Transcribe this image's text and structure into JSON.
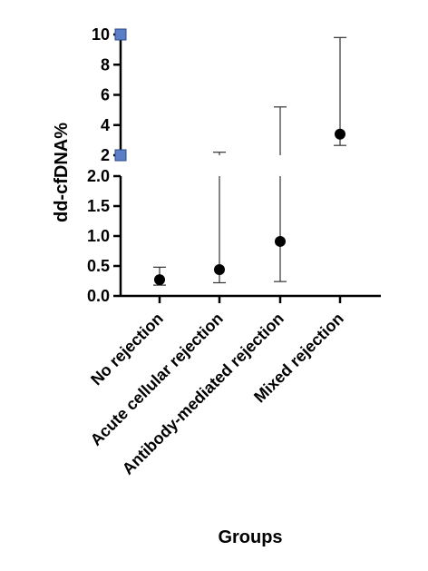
{
  "chart_data": {
    "type": "scatter",
    "xlabel": "Groups",
    "ylabel": "dd-cfDNA%",
    "axis_break": true,
    "ylim_lower": [
      0,
      2
    ],
    "ylim_upper": [
      2,
      10
    ],
    "yticks_lower": [
      0.0,
      0.5,
      1.0,
      1.5,
      2.0
    ],
    "yticks_lower_labels": [
      "0.0",
      "0.5",
      "1.0",
      "1.5",
      "2.0"
    ],
    "yticks_upper": [
      2,
      4,
      6,
      8,
      10
    ],
    "yticks_upper_labels": [
      "2",
      "4",
      "6",
      "8",
      "10"
    ],
    "categories": [
      "No rejection",
      "Acute cellular rejection",
      "Antibody-mediated rejection",
      "Mixed rejection"
    ],
    "values": [
      0.27,
      0.44,
      0.91,
      3.4
    ],
    "error_low": [
      0.18,
      0.22,
      0.24,
      2.65
    ],
    "error_high": [
      0.48,
      2.2,
      5.2,
      9.8
    ],
    "marker_color": "#000000",
    "break_marker_color": "#5b7fc7",
    "grid": false,
    "legend": "none"
  }
}
